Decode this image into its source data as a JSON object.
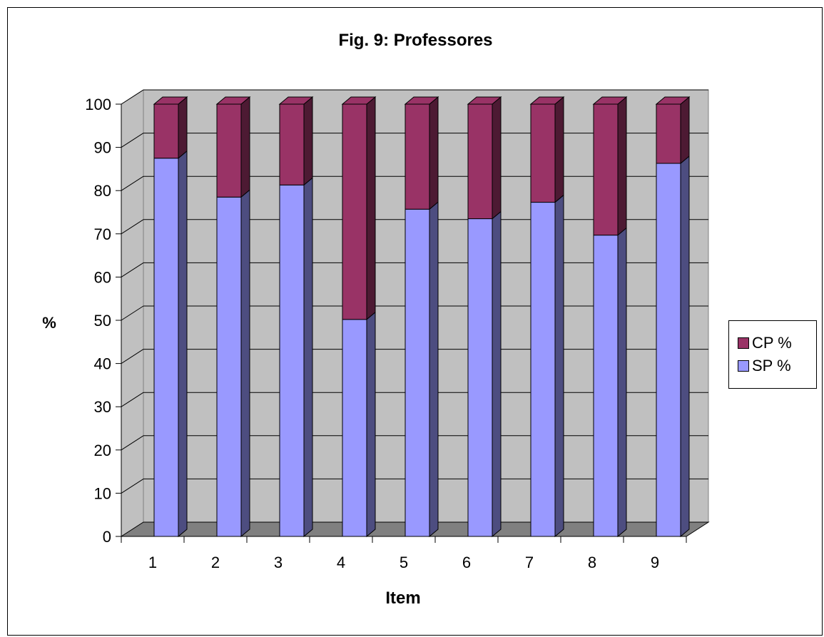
{
  "chart_data": {
    "type": "bar",
    "stacked": true,
    "three_d": true,
    "title": "Fig. 9: Professores",
    "xlabel": "Item",
    "ylabel": "%",
    "categories": [
      "1",
      "2",
      "3",
      "4",
      "5",
      "6",
      "7",
      "8",
      "9"
    ],
    "series": [
      {
        "name": "SP %",
        "values": [
          87.5,
          78.5,
          81.3,
          50.2,
          75.7,
          73.5,
          77.3,
          69.7,
          86.3
        ],
        "color": "#9999FF",
        "side_color": "#4D4D80"
      },
      {
        "name": "CP %",
        "values": [
          12.5,
          21.5,
          18.7,
          49.8,
          24.3,
          26.5,
          22.7,
          30.3,
          13.7
        ],
        "color": "#993366",
        "side_color": "#4D1A33"
      }
    ],
    "ylim": [
      0,
      100
    ],
    "yticks": [
      "0",
      "10",
      "20",
      "30",
      "40",
      "50",
      "60",
      "70",
      "80",
      "90",
      "100"
    ],
    "grid": true,
    "legend_position": "right",
    "plot_wall_color": "#C0C0C0",
    "floor_color": "#808080"
  }
}
